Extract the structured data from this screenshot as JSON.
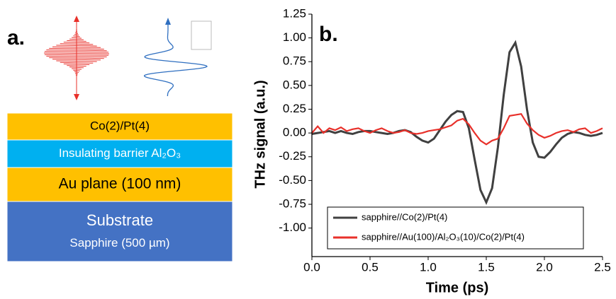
{
  "diagram": {
    "label": "a.",
    "layers": [
      {
        "lines": [
          "Co(2)/Pt(4)"
        ],
        "color": "#ffc000"
      },
      {
        "lines": [
          "Insulating barrier Al₂O₃"
        ],
        "color": "#00b0f0"
      },
      {
        "lines": [
          "Au plane (100 nm)"
        ],
        "color": "#ffc000"
      },
      {
        "lines": [
          "Substrate",
          "Sapphire (500 µm)"
        ],
        "color": "#4472c4"
      }
    ]
  },
  "chart_data": {
    "type": "line",
    "panel_label": "b.",
    "xlabel": "Time (ps)",
    "ylabel": "THz signal (a.u.)",
    "x": [
      0,
      0.05,
      0.1,
      0.15,
      0.2,
      0.25,
      0.3,
      0.35,
      0.4,
      0.45,
      0.5,
      0.55,
      0.6,
      0.65,
      0.7,
      0.75,
      0.8,
      0.85,
      0.9,
      0.95,
      1.0,
      1.05,
      1.1,
      1.15,
      1.2,
      1.25,
      1.3,
      1.35,
      1.4,
      1.45,
      1.5,
      1.55,
      1.6,
      1.65,
      1.7,
      1.75,
      1.8,
      1.85,
      1.9,
      1.95,
      2.0,
      2.05,
      2.1,
      2.15,
      2.2,
      2.25,
      2.3,
      2.35,
      2.4,
      2.45,
      2.5
    ],
    "series": [
      {
        "name": "sapphire//Co(2)/Pt(4)",
        "color": "#404040",
        "values": [
          -0.01,
          0.0,
          0.01,
          0.02,
          0.0,
          0.02,
          0.0,
          -0.01,
          0.01,
          0.02,
          0.02,
          0.01,
          0.0,
          -0.01,
          0.0,
          0.02,
          0.03,
          0.01,
          -0.04,
          -0.08,
          -0.1,
          -0.06,
          0.03,
          0.12,
          0.19,
          0.23,
          0.22,
          0.05,
          -0.28,
          -0.6,
          -0.73,
          -0.58,
          -0.15,
          0.4,
          0.85,
          0.95,
          0.7,
          0.25,
          -0.1,
          -0.25,
          -0.26,
          -0.2,
          -0.12,
          -0.05,
          -0.01,
          0.01,
          0.0,
          -0.02,
          -0.03,
          -0.02,
          0.0
        ]
      },
      {
        "name": "sapphire//Au(100)/Al₂O₃(10)/Co(2)/Pt(4)",
        "color": "#e8302a",
        "values": [
          0.0,
          0.07,
          0.0,
          0.05,
          0.03,
          0.06,
          0.02,
          0.04,
          0.05,
          0.02,
          0.0,
          0.03,
          0.05,
          0.02,
          0.0,
          0.01,
          0.03,
          0.0,
          -0.01,
          0.0,
          0.02,
          0.03,
          0.04,
          0.06,
          0.08,
          0.13,
          0.15,
          0.09,
          0.0,
          -0.08,
          -0.12,
          -0.08,
          -0.06,
          0.05,
          0.18,
          0.19,
          0.2,
          0.1,
          0.03,
          -0.02,
          -0.05,
          -0.03,
          0.0,
          0.02,
          0.03,
          0.01,
          0.04,
          0.05,
          0.0,
          0.02,
          0.05
        ]
      }
    ],
    "xlim": [
      0,
      2.5
    ],
    "xticks": [
      {
        "value": 0,
        "label": "0.0"
      },
      0.5,
      {
        "value": 1,
        "label": "1.0"
      },
      1.5,
      {
        "value": 2,
        "label": "2.0"
      },
      2.5
    ],
    "ylim": [
      -1.3,
      1.25
    ],
    "yticks": [
      {
        "value": -1,
        "label": "-1.00"
      },
      -0.75,
      {
        "value": -0.5,
        "label": "-0.50"
      },
      -0.25,
      {
        "value": 0,
        "label": "0.00"
      },
      0.25,
      {
        "value": 0.5,
        "label": "0.50"
      },
      0.75,
      {
        "value": 1,
        "label": "1.00"
      },
      1.25
    ],
    "legend_loc": "lower left"
  }
}
